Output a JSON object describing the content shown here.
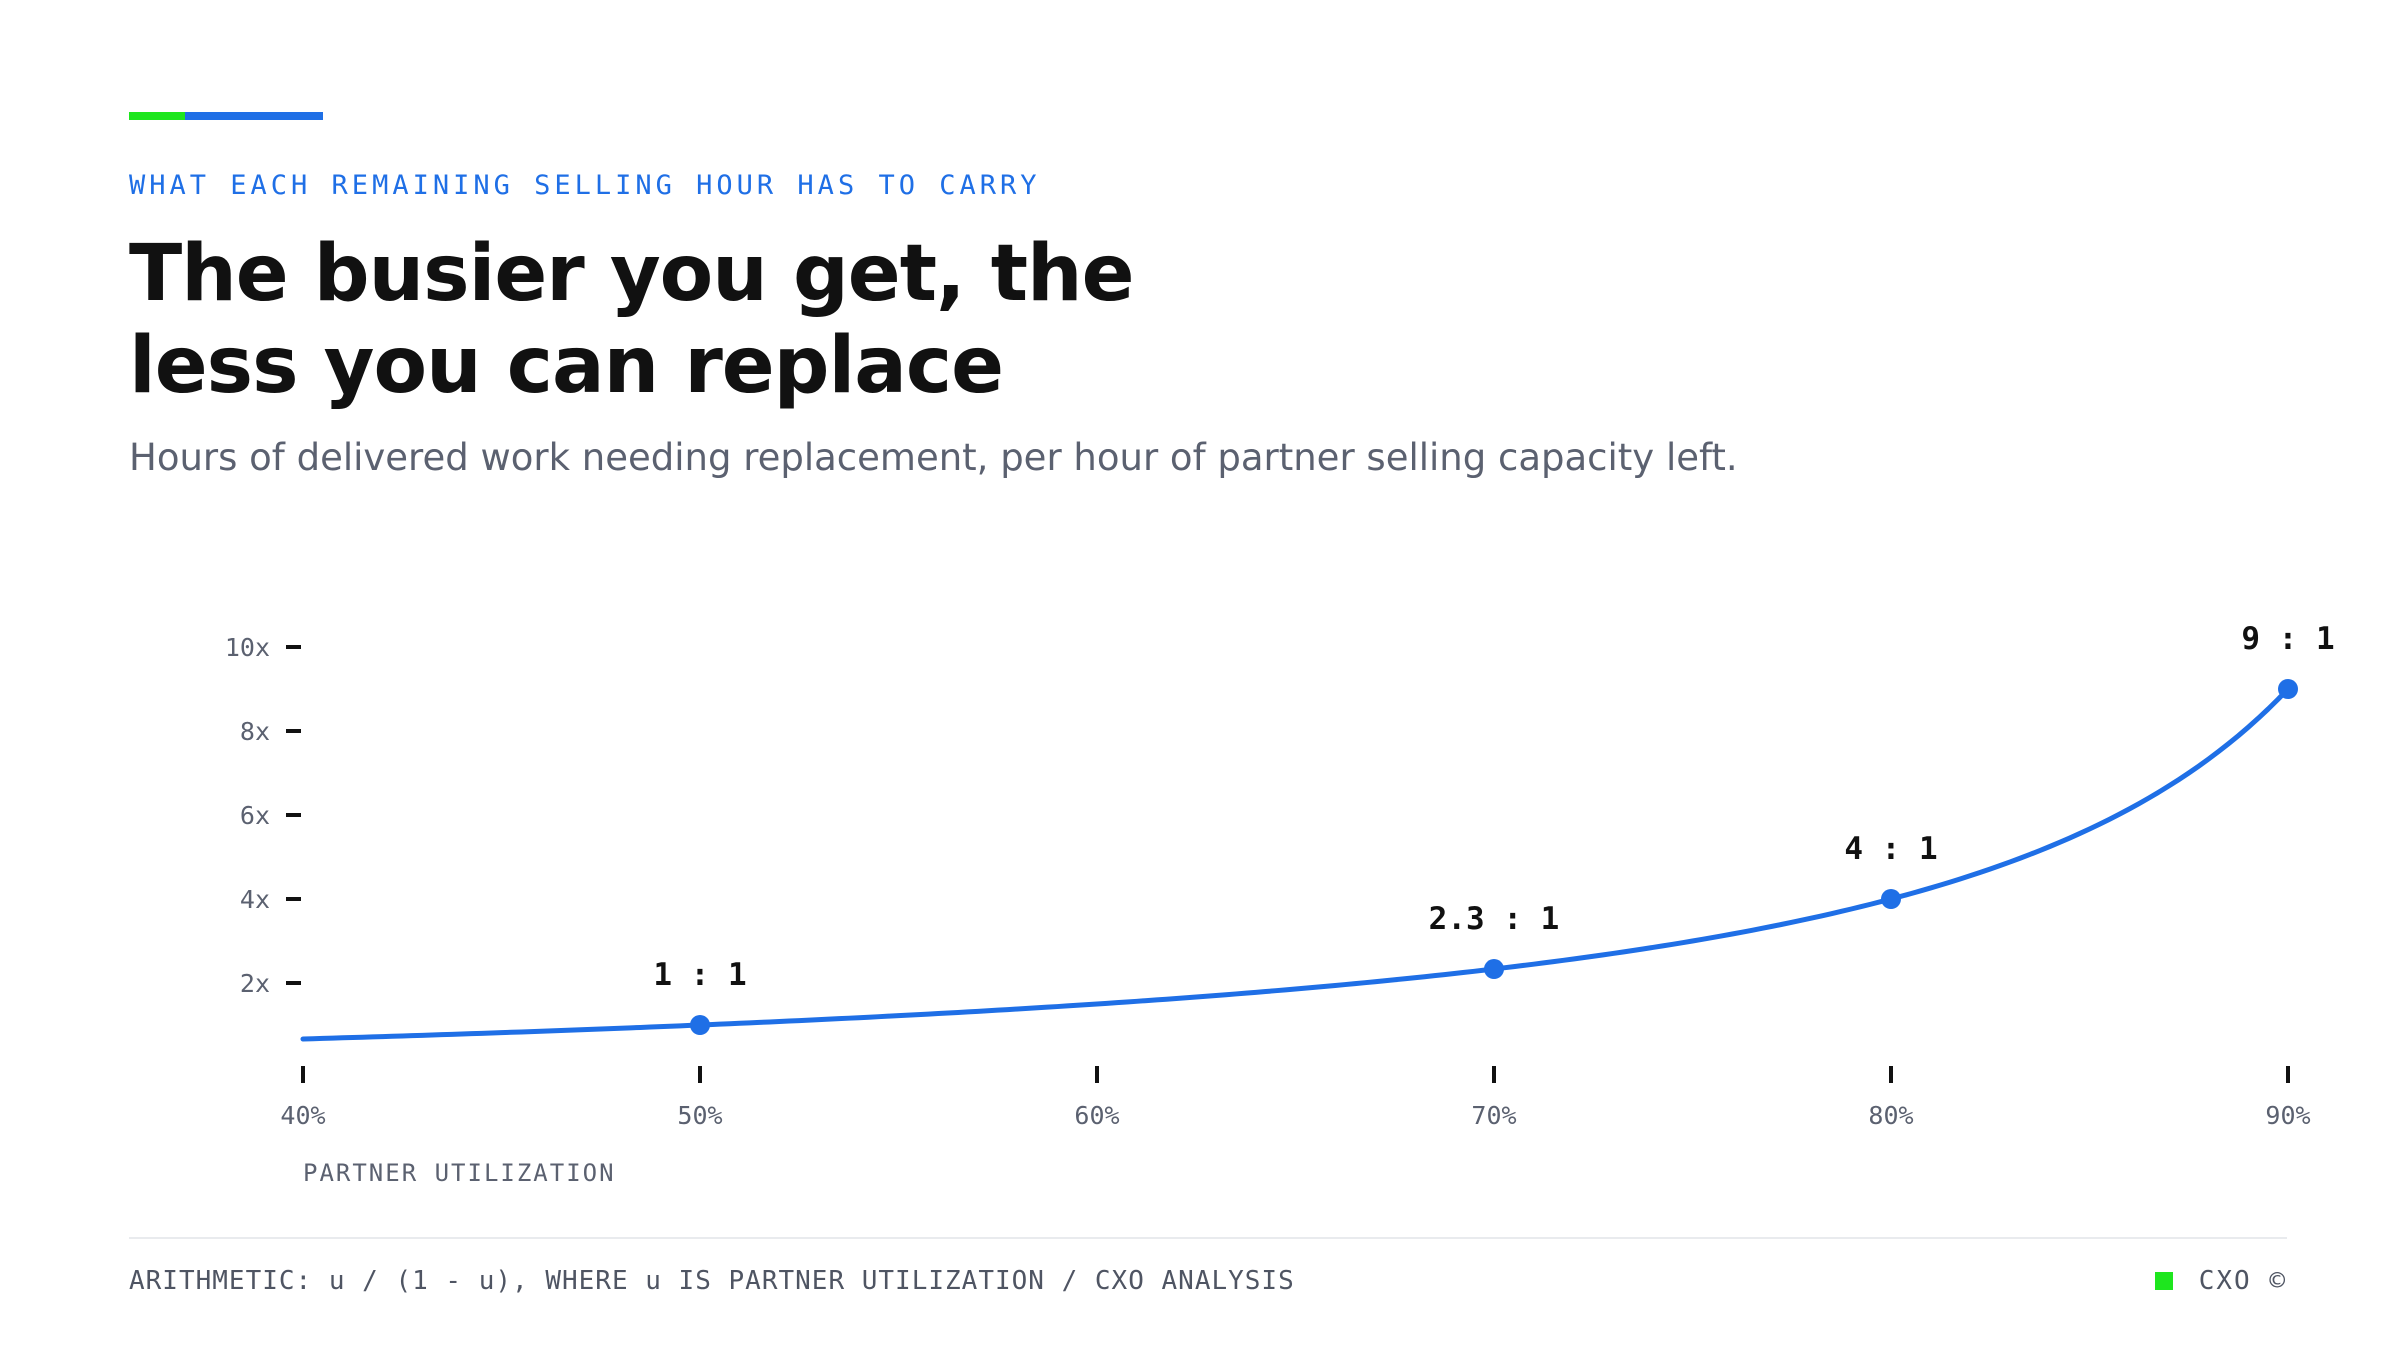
{
  "colors": {
    "accent_green": "#1ee61e",
    "accent_blue": "#1f6fe6",
    "line": "#1f6fe6",
    "text": "#111111",
    "muted": "#5b6170"
  },
  "header": {
    "eyebrow": "WHAT EACH REMAINING SELLING HOUR HAS TO CARRY",
    "title_line1": "The busier you get, the",
    "title_line2": "less you can replace",
    "subtitle": "Hours of delivered work needing replacement, per hour of partner selling capacity left."
  },
  "chart_data": {
    "type": "line",
    "title": "The busier you get, the less you can replace",
    "subtitle": "Hours of delivered work needing replacement, per hour of partner selling capacity left.",
    "xlabel": "PARTNER UTILIZATION",
    "ylabel": "",
    "formula": "u / (1 - u)",
    "x_range": [
      0.4,
      0.9
    ],
    "y_range": [
      0,
      10
    ],
    "x_ticks": [
      {
        "value": 0.4,
        "label": "40%"
      },
      {
        "value": 0.5,
        "label": "50%"
      },
      {
        "value": 0.6,
        "label": "60%"
      },
      {
        "value": 0.7,
        "label": "70%"
      },
      {
        "value": 0.8,
        "label": "80%"
      },
      {
        "value": 0.9,
        "label": "90%"
      }
    ],
    "y_ticks": [
      {
        "value": 2,
        "label": "2x"
      },
      {
        "value": 4,
        "label": "4x"
      },
      {
        "value": 6,
        "label": "6x"
      },
      {
        "value": 8,
        "label": "8x"
      },
      {
        "value": 10,
        "label": "10x"
      }
    ],
    "series": [
      {
        "x": [
          0.4,
          0.45,
          0.5,
          0.55,
          0.6,
          0.65,
          0.7,
          0.75,
          0.8,
          0.85,
          0.9
        ],
        "y": [
          0.667,
          0.818,
          1.0,
          1.222,
          1.5,
          1.857,
          2.333,
          3.0,
          4.0,
          5.667,
          9.0
        ]
      }
    ],
    "highlighted_points": [
      {
        "x": 0.5,
        "y": 1.0,
        "label": "1 : 1"
      },
      {
        "x": 0.7,
        "y": 2.333,
        "label": "2.3 : 1"
      },
      {
        "x": 0.8,
        "y": 4.0,
        "label": "4 : 1"
      },
      {
        "x": 0.9,
        "y": 9.0,
        "label": "9 : 1"
      }
    ],
    "grid": false
  },
  "footer": {
    "source": "ARITHMETIC: u / (1 - u), WHERE u IS PARTNER UTILIZATION / CXO ANALYSIS",
    "brand": "CXO ©"
  }
}
